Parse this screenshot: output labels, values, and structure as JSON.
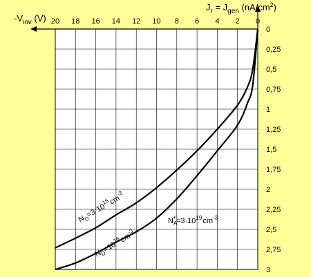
{
  "chart_data": {
    "type": "line",
    "x_axis": {
      "label": {
        "prefix": "-V",
        "sub": "inv",
        "suffix": " (V)"
      },
      "range": [
        20,
        0
      ],
      "ticks": [
        "20",
        "18",
        "16",
        "14",
        "12",
        "10",
        "8",
        "6",
        "4",
        "2",
        "0"
      ]
    },
    "y_axis": {
      "label": {
        "a": "J",
        "a_sub": "r",
        "b": " = J",
        "b_sub": "gen",
        "c": " (nA/cm",
        "c_sup": "2",
        "d": ")"
      },
      "range": [
        0,
        3
      ],
      "ticks": [
        "0",
        "0,25",
        "0,5",
        "0,75",
        "1",
        "1,25",
        "1,5",
        "1,75",
        "2",
        "2,25",
        "2,5",
        "2,75",
        "3"
      ]
    },
    "grid": true,
    "series": [
      {
        "label": {
          "p1": "N",
          "p1_sub": "D",
          "p2": "=3·10",
          "p2_sup": "15",
          "p3": "cm",
          "p3_sup": "-3"
        },
        "points": [
          [
            0,
            0
          ],
          [
            0.5,
            0.5
          ],
          [
            1,
            0.72
          ],
          [
            2,
            0.95
          ],
          [
            4,
            1.25
          ],
          [
            6,
            1.52
          ],
          [
            8,
            1.76
          ],
          [
            10,
            1.98
          ],
          [
            12,
            2.17
          ],
          [
            14,
            2.32
          ],
          [
            16,
            2.48
          ],
          [
            18,
            2.61
          ],
          [
            20,
            2.73
          ]
        ]
      },
      {
        "label": {
          "p1": "N",
          "p1_sub": "D",
          "p2": "=10",
          "p2_sup": "16",
          "p3": "cm",
          "p3_sup": "-3"
        },
        "points": [
          [
            0,
            0
          ],
          [
            0.5,
            0.7
          ],
          [
            1,
            0.92
          ],
          [
            2,
            1.2
          ],
          [
            4,
            1.52
          ],
          [
            6,
            1.83
          ],
          [
            8,
            2.12
          ],
          [
            10,
            2.36
          ],
          [
            12,
            2.53
          ],
          [
            14,
            2.66
          ],
          [
            16,
            2.8
          ],
          [
            18,
            2.92
          ],
          [
            20,
            3.0
          ]
        ]
      }
    ],
    "annotations": [
      {
        "p1": "N",
        "p1_sub": "A",
        "p1_sup": "+",
        "p2": "=3·10",
        "p2_sup": "19",
        "p3": "cm",
        "p3_sup": "-3"
      }
    ]
  }
}
